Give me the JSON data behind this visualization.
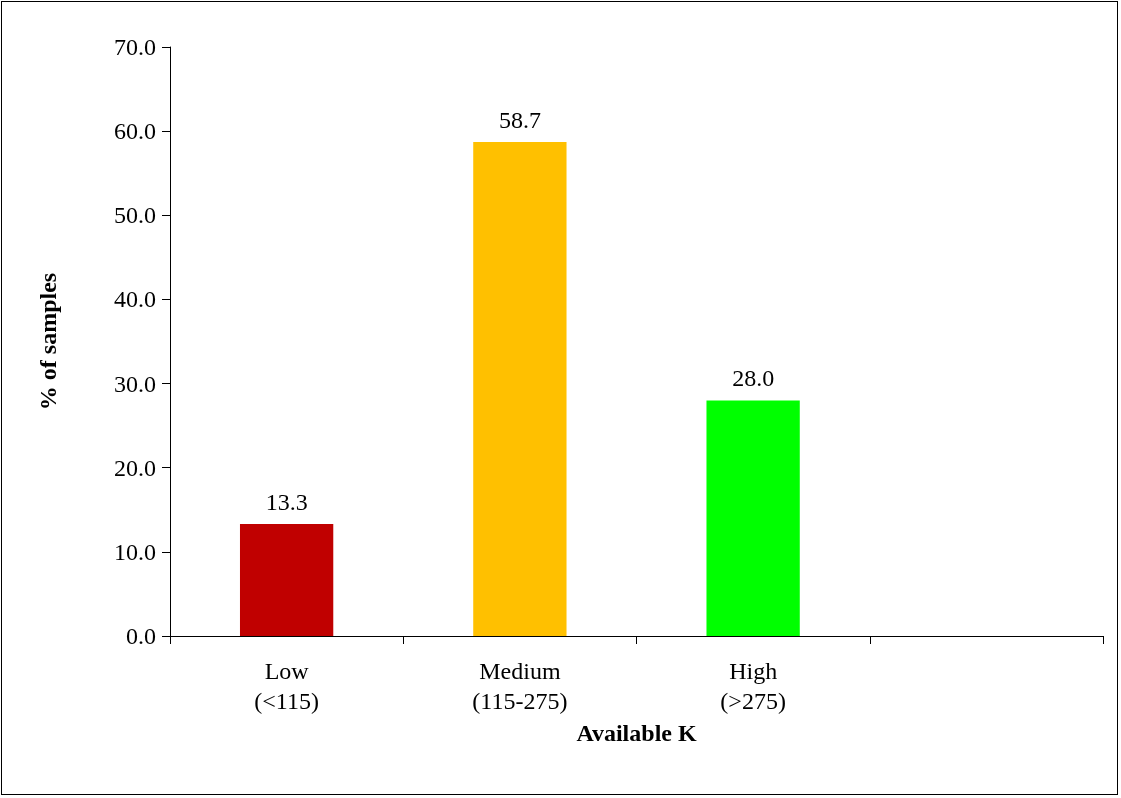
{
  "chart_data": {
    "type": "bar",
    "xlabel": "Available K",
    "ylabel": "% of samples",
    "categories": [
      "Low\n(<115)",
      "Medium\n(115-275)",
      "High\n(>275)",
      null
    ],
    "values": [
      13.3,
      58.7,
      28.0,
      null
    ],
    "colors": [
      "#c00000",
      "#ffc000",
      "#00ff00",
      null
    ],
    "value_labels": [
      "13.3",
      "58.7",
      "28.0",
      null
    ],
    "ylim": [
      0,
      70
    ],
    "yticks": [
      {
        "value": 0,
        "label": "0.0"
      },
      {
        "value": 10,
        "label": "10.0"
      },
      {
        "value": 20,
        "label": "20.0"
      },
      {
        "value": 30,
        "label": "30.0"
      },
      {
        "value": 40,
        "label": "40.0"
      },
      {
        "value": 50,
        "label": "50.0"
      },
      {
        "value": 60,
        "label": "60.0"
      },
      {
        "value": 70,
        "label": "70.0"
      }
    ]
  }
}
